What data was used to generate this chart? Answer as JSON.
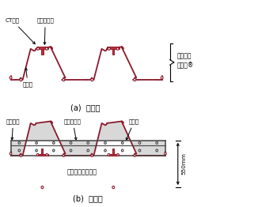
{
  "line_color": "#8b1a2a",
  "dark_line": "#444444",
  "fill_color": "#c8c8c8",
  "fill_light": "#d8d8d8",
  "steel_color": "#c0303a",
  "annotation_fontsize": 5.2,
  "label_fontsize": 7.0,
  "brace_label": "ビートル\nパイル®",
  "ann_ct": "CT形鋼",
  "ann_rebar": "定着用鉄筋",
  "ann_sheet": "鋼矢板",
  "ann_hoop": "補強鉄筋",
  "ann_axial": "軸方向鉄筋",
  "ann_dist": "配力筋",
  "ann_concrete": "鉄筋コンクリート",
  "ann_dim": "550mm",
  "label_a": "(a)  仮設時",
  "label_b": "(b)  本設時"
}
